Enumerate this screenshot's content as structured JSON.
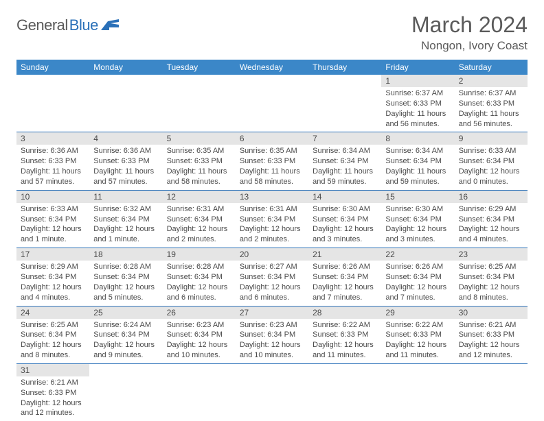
{
  "brand": {
    "part1": "General",
    "part2": "Blue",
    "accent": "#2a70b8"
  },
  "title": "March 2024",
  "location": "Nongon, Ivory Coast",
  "colors": {
    "header_bg": "#3b87c8",
    "header_fg": "#ffffff",
    "rule": "#2a70b8",
    "daynum_bg": "#e5e5e5",
    "text": "#4a4a4a"
  },
  "weekdays": [
    "Sunday",
    "Monday",
    "Tuesday",
    "Wednesday",
    "Thursday",
    "Friday",
    "Saturday"
  ],
  "weeks": [
    [
      null,
      null,
      null,
      null,
      null,
      {
        "n": "1",
        "sr": "Sunrise: 6:37 AM",
        "ss": "Sunset: 6:33 PM",
        "dl": "Daylight: 11 hours and 56 minutes."
      },
      {
        "n": "2",
        "sr": "Sunrise: 6:37 AM",
        "ss": "Sunset: 6:33 PM",
        "dl": "Daylight: 11 hours and 56 minutes."
      }
    ],
    [
      {
        "n": "3",
        "sr": "Sunrise: 6:36 AM",
        "ss": "Sunset: 6:33 PM",
        "dl": "Daylight: 11 hours and 57 minutes."
      },
      {
        "n": "4",
        "sr": "Sunrise: 6:36 AM",
        "ss": "Sunset: 6:33 PM",
        "dl": "Daylight: 11 hours and 57 minutes."
      },
      {
        "n": "5",
        "sr": "Sunrise: 6:35 AM",
        "ss": "Sunset: 6:33 PM",
        "dl": "Daylight: 11 hours and 58 minutes."
      },
      {
        "n": "6",
        "sr": "Sunrise: 6:35 AM",
        "ss": "Sunset: 6:33 PM",
        "dl": "Daylight: 11 hours and 58 minutes."
      },
      {
        "n": "7",
        "sr": "Sunrise: 6:34 AM",
        "ss": "Sunset: 6:34 PM",
        "dl": "Daylight: 11 hours and 59 minutes."
      },
      {
        "n": "8",
        "sr": "Sunrise: 6:34 AM",
        "ss": "Sunset: 6:34 PM",
        "dl": "Daylight: 11 hours and 59 minutes."
      },
      {
        "n": "9",
        "sr": "Sunrise: 6:33 AM",
        "ss": "Sunset: 6:34 PM",
        "dl": "Daylight: 12 hours and 0 minutes."
      }
    ],
    [
      {
        "n": "10",
        "sr": "Sunrise: 6:33 AM",
        "ss": "Sunset: 6:34 PM",
        "dl": "Daylight: 12 hours and 1 minute."
      },
      {
        "n": "11",
        "sr": "Sunrise: 6:32 AM",
        "ss": "Sunset: 6:34 PM",
        "dl": "Daylight: 12 hours and 1 minute."
      },
      {
        "n": "12",
        "sr": "Sunrise: 6:31 AM",
        "ss": "Sunset: 6:34 PM",
        "dl": "Daylight: 12 hours and 2 minutes."
      },
      {
        "n": "13",
        "sr": "Sunrise: 6:31 AM",
        "ss": "Sunset: 6:34 PM",
        "dl": "Daylight: 12 hours and 2 minutes."
      },
      {
        "n": "14",
        "sr": "Sunrise: 6:30 AM",
        "ss": "Sunset: 6:34 PM",
        "dl": "Daylight: 12 hours and 3 minutes."
      },
      {
        "n": "15",
        "sr": "Sunrise: 6:30 AM",
        "ss": "Sunset: 6:34 PM",
        "dl": "Daylight: 12 hours and 3 minutes."
      },
      {
        "n": "16",
        "sr": "Sunrise: 6:29 AM",
        "ss": "Sunset: 6:34 PM",
        "dl": "Daylight: 12 hours and 4 minutes."
      }
    ],
    [
      {
        "n": "17",
        "sr": "Sunrise: 6:29 AM",
        "ss": "Sunset: 6:34 PM",
        "dl": "Daylight: 12 hours and 4 minutes."
      },
      {
        "n": "18",
        "sr": "Sunrise: 6:28 AM",
        "ss": "Sunset: 6:34 PM",
        "dl": "Daylight: 12 hours and 5 minutes."
      },
      {
        "n": "19",
        "sr": "Sunrise: 6:28 AM",
        "ss": "Sunset: 6:34 PM",
        "dl": "Daylight: 12 hours and 6 minutes."
      },
      {
        "n": "20",
        "sr": "Sunrise: 6:27 AM",
        "ss": "Sunset: 6:34 PM",
        "dl": "Daylight: 12 hours and 6 minutes."
      },
      {
        "n": "21",
        "sr": "Sunrise: 6:26 AM",
        "ss": "Sunset: 6:34 PM",
        "dl": "Daylight: 12 hours and 7 minutes."
      },
      {
        "n": "22",
        "sr": "Sunrise: 6:26 AM",
        "ss": "Sunset: 6:34 PM",
        "dl": "Daylight: 12 hours and 7 minutes."
      },
      {
        "n": "23",
        "sr": "Sunrise: 6:25 AM",
        "ss": "Sunset: 6:34 PM",
        "dl": "Daylight: 12 hours and 8 minutes."
      }
    ],
    [
      {
        "n": "24",
        "sr": "Sunrise: 6:25 AM",
        "ss": "Sunset: 6:34 PM",
        "dl": "Daylight: 12 hours and 8 minutes."
      },
      {
        "n": "25",
        "sr": "Sunrise: 6:24 AM",
        "ss": "Sunset: 6:34 PM",
        "dl": "Daylight: 12 hours and 9 minutes."
      },
      {
        "n": "26",
        "sr": "Sunrise: 6:23 AM",
        "ss": "Sunset: 6:34 PM",
        "dl": "Daylight: 12 hours and 10 minutes."
      },
      {
        "n": "27",
        "sr": "Sunrise: 6:23 AM",
        "ss": "Sunset: 6:34 PM",
        "dl": "Daylight: 12 hours and 10 minutes."
      },
      {
        "n": "28",
        "sr": "Sunrise: 6:22 AM",
        "ss": "Sunset: 6:33 PM",
        "dl": "Daylight: 12 hours and 11 minutes."
      },
      {
        "n": "29",
        "sr": "Sunrise: 6:22 AM",
        "ss": "Sunset: 6:33 PM",
        "dl": "Daylight: 12 hours and 11 minutes."
      },
      {
        "n": "30",
        "sr": "Sunrise: 6:21 AM",
        "ss": "Sunset: 6:33 PM",
        "dl": "Daylight: 12 hours and 12 minutes."
      }
    ],
    [
      {
        "n": "31",
        "sr": "Sunrise: 6:21 AM",
        "ss": "Sunset: 6:33 PM",
        "dl": "Daylight: 12 hours and 12 minutes."
      },
      null,
      null,
      null,
      null,
      null,
      null
    ]
  ]
}
